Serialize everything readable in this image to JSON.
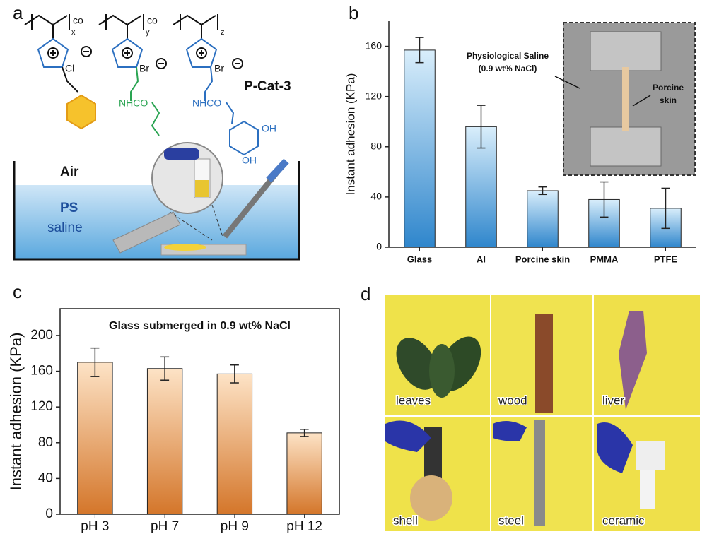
{
  "panel_a": {
    "label": "a",
    "polymer": {
      "co_1": "co",
      "co_2": "co",
      "x": "x",
      "y": "y",
      "z": "z",
      "cl": "Cl",
      "br_1": "Br",
      "br_2": "Br",
      "nhco_1": "NHCO",
      "nhco_2": "NHCO",
      "oh_1": "OH",
      "oh_2": "OH",
      "name": "P-Cat-3"
    },
    "setup": {
      "air": "Air",
      "ps": "PS",
      "saline": "saline"
    }
  },
  "panel_d": {
    "label": "d",
    "photos": [
      "leaves",
      "wood",
      "liver",
      "shell",
      "steel",
      "ceramic"
    ]
  },
  "chart_data": [
    {
      "type": "bar",
      "panel_label": "b",
      "ylabel": "Instant adhesion (KPa)",
      "categories": [
        "Glass",
        "Al",
        "Porcine skin",
        "PMMA",
        "PTFE"
      ],
      "values": [
        157,
        96,
        45,
        38,
        31
      ],
      "errors": [
        10,
        17,
        3,
        14,
        16
      ],
      "ylim": [
        0,
        180
      ],
      "yticks": [
        0,
        40,
        80,
        120,
        160
      ],
      "colors": [
        "#d9eefb",
        "#2f86cc"
      ],
      "inset": {
        "saline": "Physiological Saline",
        "nacl": "(0.9 wt% NaCl)",
        "skin_1": "Porcine",
        "skin_2": "skin"
      }
    },
    {
      "type": "bar",
      "panel_label": "c",
      "title": "Glass submerged in 0.9 wt% NaCl",
      "ylabel": "Instant adhesion (KPa)",
      "categories": [
        "pH 3",
        "pH 7",
        "pH 9",
        "pH 12"
      ],
      "values": [
        170,
        163,
        157,
        91
      ],
      "errors": [
        16,
        13,
        10,
        4
      ],
      "ylim": [
        0,
        230
      ],
      "yticks": [
        0,
        40,
        80,
        120,
        160,
        200
      ],
      "colors": [
        "#fde3c6",
        "#d4762a"
      ]
    }
  ]
}
